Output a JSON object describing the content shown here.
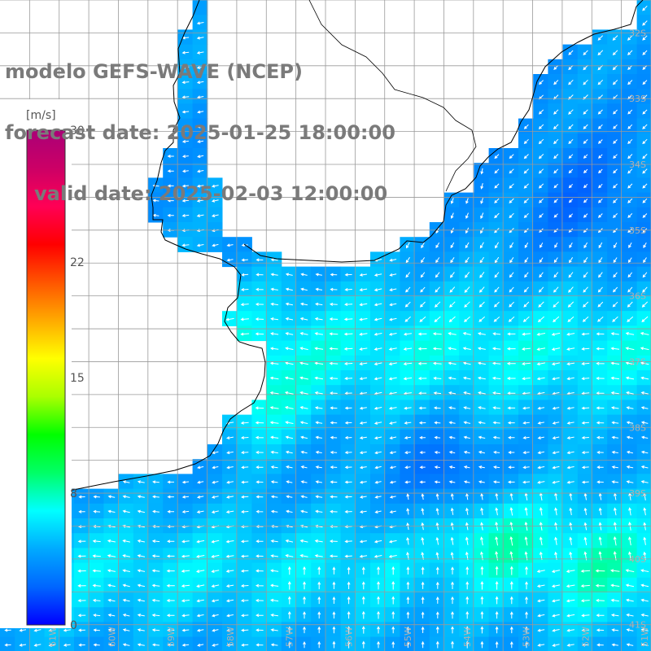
{
  "header": {
    "model": "modelo GEFS-WAVE (NCEP)",
    "forecast": "forecast date: 2025-01-25 18:00:00",
    "valid": "valid date: 2025-02-03 12:00:00"
  },
  "colorbar": {
    "unit": "[m/s]",
    "min": 0,
    "max": 30,
    "ticks": [
      "30",
      "22",
      "15",
      "8",
      "0"
    ],
    "tick_values": [
      30,
      22,
      15,
      8,
      0
    ],
    "stops": [
      "#0000ff",
      "#0066ff",
      "#00aaff",
      "#00ffff",
      "#00ff66",
      "#00ff00",
      "#aaff00",
      "#ffff00",
      "#ffaa00",
      "#ff5500",
      "#ff0000",
      "#ff0055",
      "#cc0066",
      "#aa0077"
    ]
  },
  "lat_labels": [
    "32S",
    "33S",
    "34S",
    "35S",
    "36S",
    "37S",
    "38S",
    "39S",
    "40S",
    "41S"
  ],
  "lat_values": [
    -32,
    -33,
    -34,
    -35,
    -36,
    -37,
    -38,
    -39,
    -40,
    -41
  ],
  "lon_labels": [
    "61W",
    "60W",
    "59W",
    "58W",
    "57W",
    "56W",
    "55W",
    "54W",
    "53W",
    "52W",
    "51W"
  ],
  "lon_values": [
    -61,
    -60,
    -59,
    -58,
    -57,
    -56,
    -55,
    -54,
    -53,
    -52,
    -51
  ],
  "map_extent": {
    "lon": [
      -62,
      -51
    ],
    "lat": [
      -41.4,
      -31.5
    ]
  },
  "colors": {
    "grid": "#9a9a9a",
    "coast": "#000000",
    "land": "#ffffff",
    "arrow": "#ffffff",
    "label": "#b0b0b0"
  }
}
